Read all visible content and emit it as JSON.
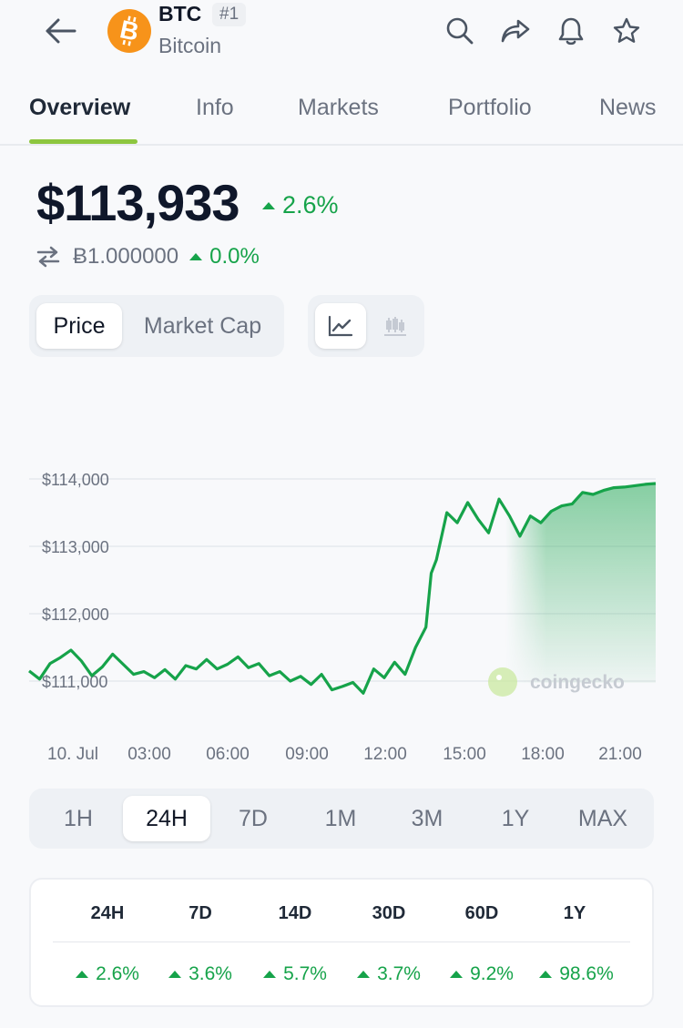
{
  "header": {
    "symbol": "BTC",
    "rank": "#1",
    "name": "Bitcoin",
    "logo_color": "#f7931a"
  },
  "tabs": [
    {
      "label": "Overview",
      "active": true
    },
    {
      "label": "Info"
    },
    {
      "label": "Markets"
    },
    {
      "label": "Portfolio"
    },
    {
      "label": "News"
    }
  ],
  "price": {
    "value": "$113,933",
    "change": "2.6%",
    "btc_value": "Ƀ1.000000",
    "btc_change": "0.0%",
    "up_color": "#16a34a"
  },
  "chart_toggle": {
    "price_label": "Price",
    "market_cap_label": "Market Cap"
  },
  "chart_data": {
    "type": "area",
    "y_ticks": [
      "$114,000",
      "$113,000",
      "$112,000",
      "$111,000"
    ],
    "x_ticks": [
      "10. Jul",
      "03:00",
      "06:00",
      "09:00",
      "12:00",
      "15:00",
      "18:00",
      "21:00"
    ],
    "ylim": [
      110700,
      114200
    ],
    "watermark": "coingecko",
    "line_color": "#16a34a",
    "x": [
      0,
      0.4,
      0.8,
      1.2,
      1.6,
      2.0,
      2.4,
      2.8,
      3.2,
      3.6,
      4.0,
      4.4,
      4.8,
      5.2,
      5.6,
      6.0,
      6.4,
      6.8,
      7.2,
      7.6,
      8.0,
      8.4,
      8.8,
      9.2,
      9.6,
      10.0,
      10.4,
      10.8,
      11.2,
      11.6,
      12.0,
      12.4,
      12.8,
      13.2,
      13.6,
      14.0,
      14.4,
      14.8,
      15.2,
      15.4,
      15.6,
      16.0,
      16.4,
      16.8,
      17.2,
      17.4,
      17.6,
      18.0,
      18.4,
      18.8,
      19.2,
      19.6,
      20.0,
      20.4,
      20.8,
      21.2,
      21.6,
      22.0,
      22.4,
      22.8,
      23.2,
      23.6,
      24.0
    ],
    "y": [
      111150,
      111030,
      111260,
      111350,
      111460,
      111300,
      111080,
      111210,
      111400,
      111250,
      111100,
      111140,
      111050,
      111170,
      111030,
      111230,
      111180,
      111320,
      111180,
      111250,
      111360,
      111200,
      111260,
      111080,
      111140,
      111000,
      111070,
      110950,
      111100,
      110870,
      110920,
      110980,
      110820,
      111180,
      111050,
      111280,
      111100,
      111500,
      111800,
      112600,
      112800,
      113500,
      113350,
      113650,
      113400,
      113300,
      113200,
      113700,
      113450,
      113150,
      113450,
      113350,
      113520,
      113600,
      113630,
      113800,
      113770,
      113830,
      113870,
      113880,
      113900,
      113920,
      113933
    ]
  },
  "ranges": [
    {
      "label": "1H"
    },
    {
      "label": "24H",
      "active": true
    },
    {
      "label": "7D"
    },
    {
      "label": "1M"
    },
    {
      "label": "3M"
    },
    {
      "label": "1Y"
    },
    {
      "label": "MAX"
    }
  ],
  "performance": [
    {
      "period": "24H",
      "change": "2.6%"
    },
    {
      "period": "7D",
      "change": "3.6%"
    },
    {
      "period": "14D",
      "change": "5.7%"
    },
    {
      "period": "30D",
      "change": "3.7%"
    },
    {
      "period": "60D",
      "change": "9.2%"
    },
    {
      "period": "1Y",
      "change": "98.6%"
    }
  ]
}
